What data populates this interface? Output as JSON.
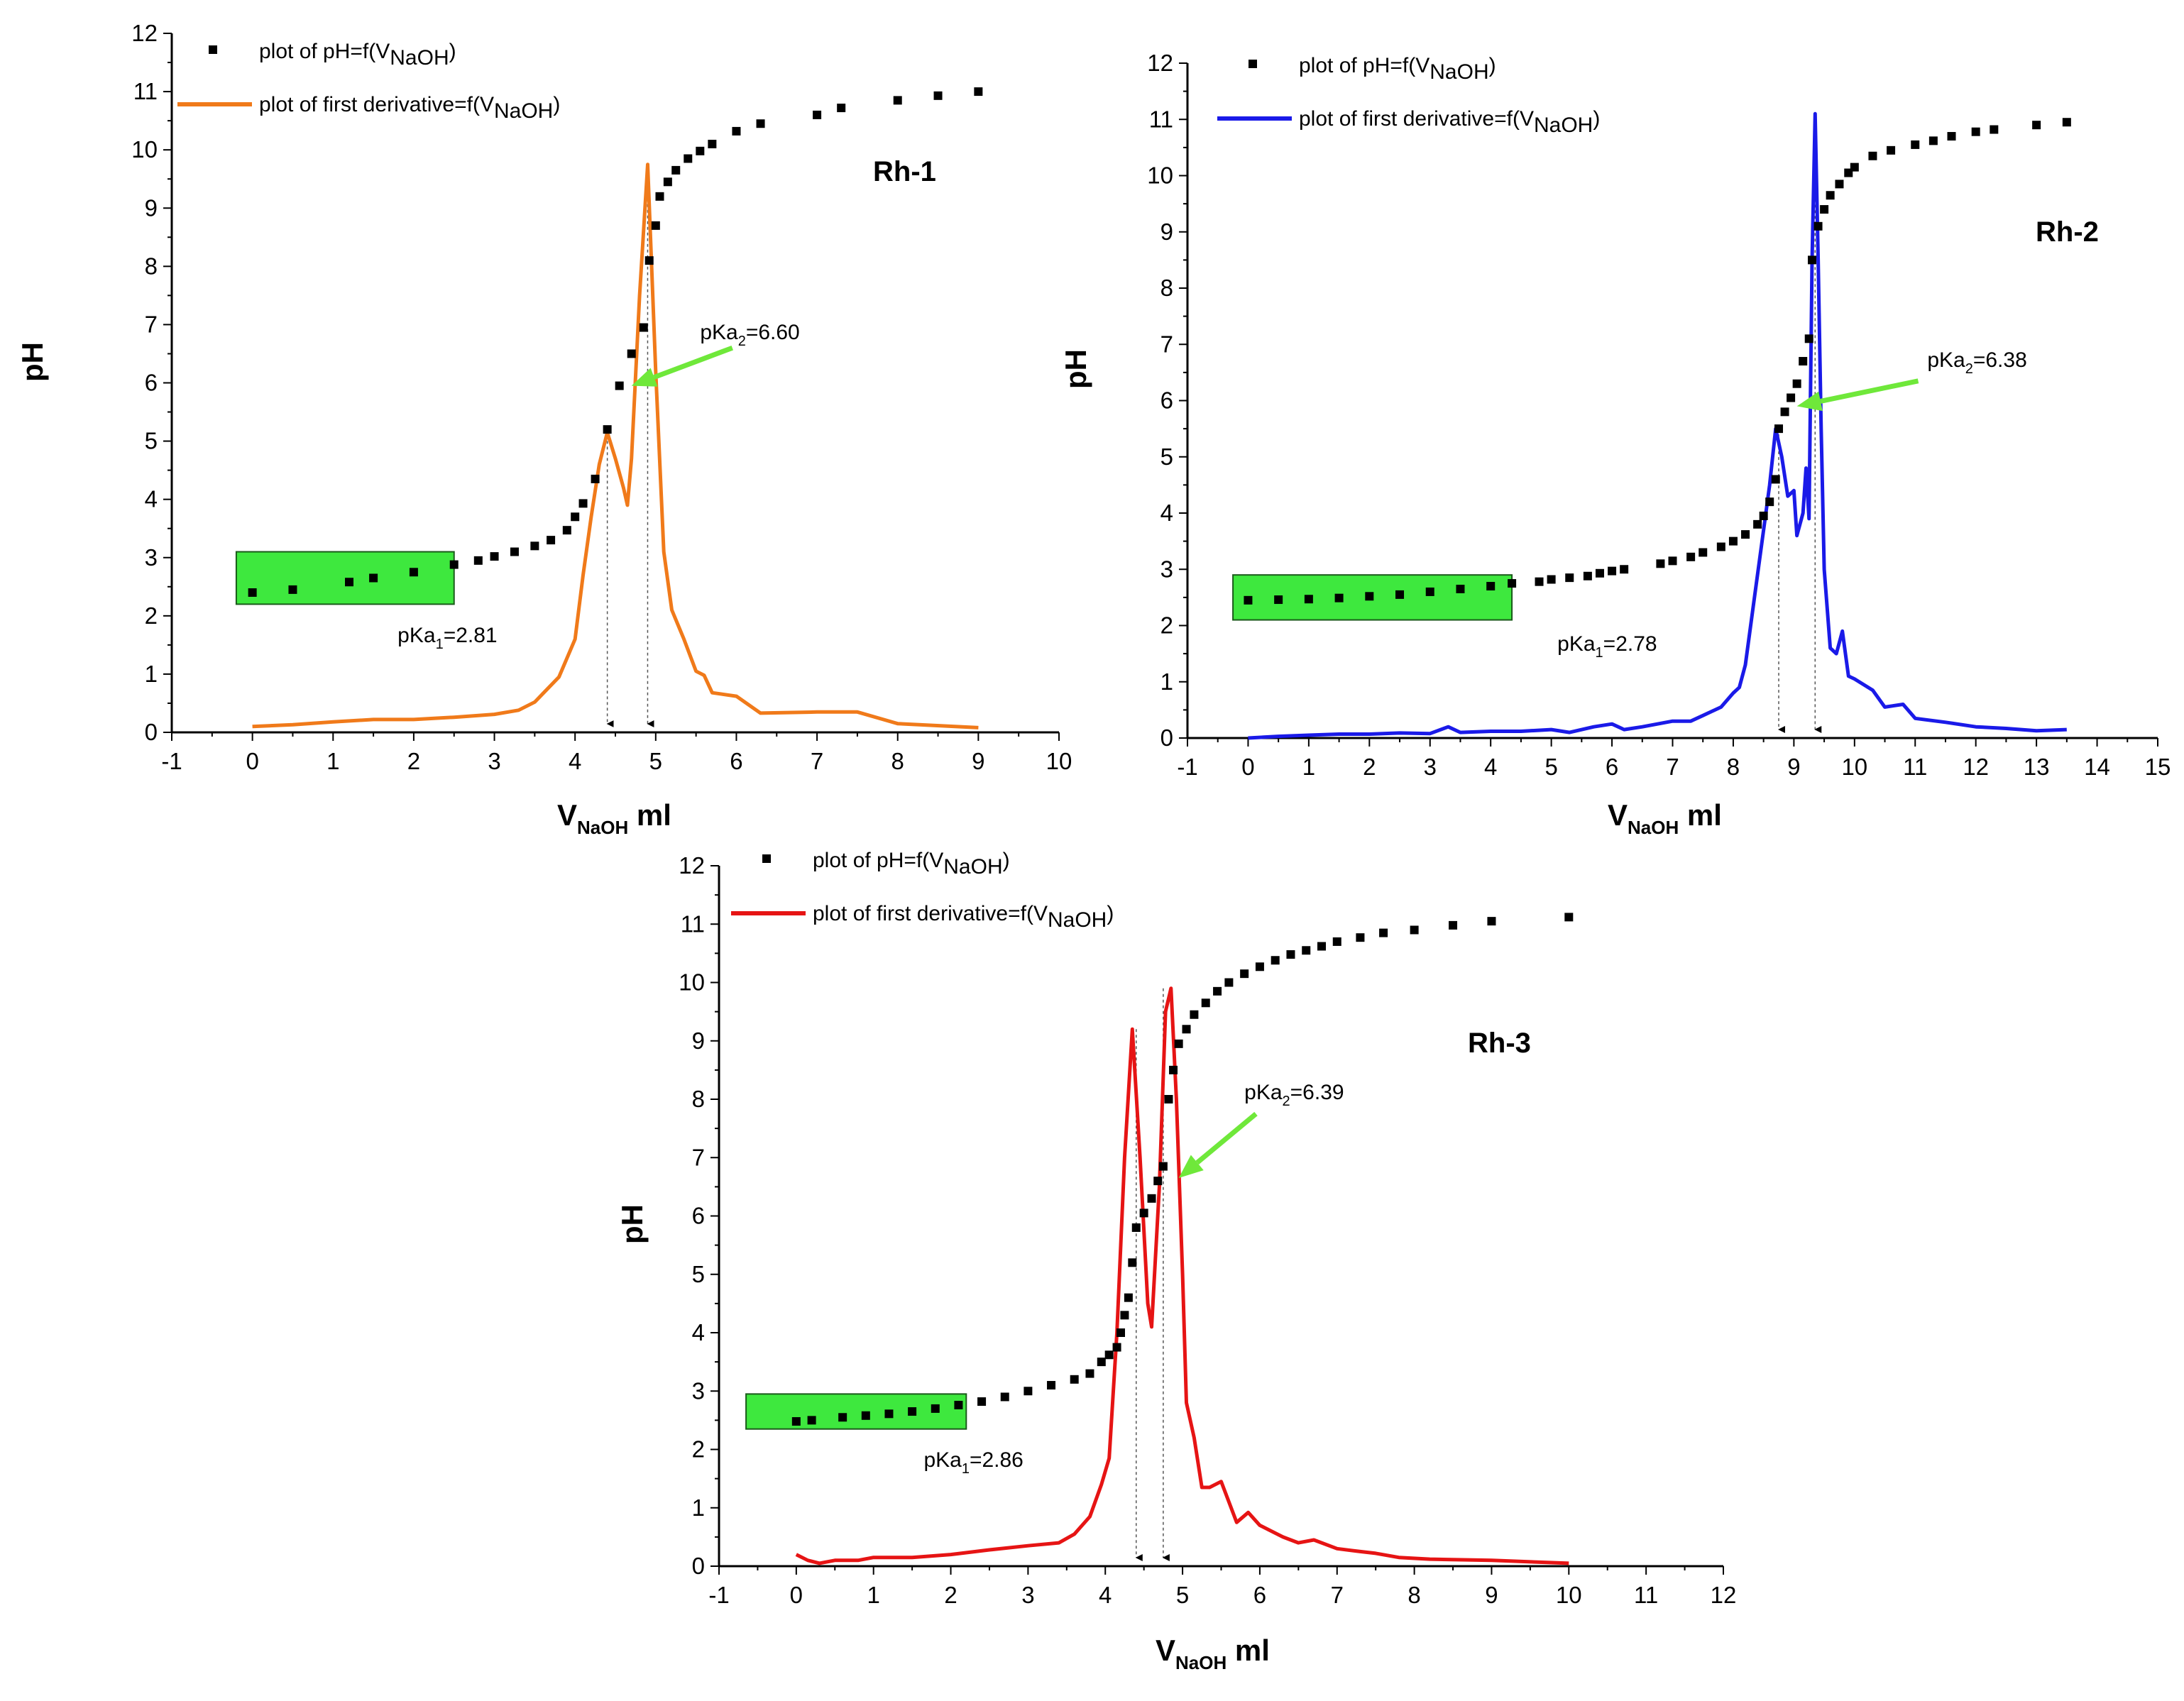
{
  "chart_data": [
    {
      "type": "line",
      "title": "Rh-1",
      "xlabel_main": "V",
      "xlabel_sub": "NaOH",
      "xlabel_unit": " ml",
      "ylabel": "pH",
      "xlim": [
        -1,
        10
      ],
      "ylim": [
        0,
        12
      ],
      "xticks": [
        "-1",
        "0",
        "1",
        "2",
        "3",
        "4",
        "5",
        "6",
        "7",
        "8",
        "9",
        "10"
      ],
      "yticks": [
        "0",
        "1",
        "2",
        "3",
        "4",
        "5",
        "6",
        "7",
        "8",
        "9",
        "10",
        "11",
        "12"
      ],
      "legend": {
        "scatter_prefix": "plot of pH=f(V",
        "scatter_sub": "NaOH",
        "scatter_suffix": ")",
        "line_prefix": "plot of first derivative=f(V",
        "line_sub": "NaOH",
        "line_suffix": ")"
      },
      "line_color": "#F07A1A",
      "highlight_color": "#3EE83E",
      "arrow_color": "#6FE83A",
      "highlight_x": [
        -0.2,
        2.5
      ],
      "highlight_y": [
        2.2,
        3.1
      ],
      "pka1": {
        "prefix": "pKa",
        "sub": "1",
        "value": "=2.81"
      },
      "pka2": {
        "prefix": "pKa",
        "sub": "2",
        "value": "=6.60"
      },
      "pka1_anchor": [
        1.8,
        1.55
      ],
      "pka2_anchor": [
        5.55,
        6.75
      ],
      "green_arrow": {
        "from": [
          5.95,
          6.6
        ],
        "to": [
          4.7,
          5.95
        ]
      },
      "equivalence_points": [
        4.4,
        4.9
      ],
      "equiv_top": [
        5.1,
        9.75
      ],
      "scatter": [
        [
          0,
          2.4
        ],
        [
          0.5,
          2.45
        ],
        [
          1.2,
          2.58
        ],
        [
          1.5,
          2.65
        ],
        [
          2,
          2.75
        ],
        [
          2.5,
          2.88
        ],
        [
          2.8,
          2.95
        ],
        [
          3,
          3.02
        ],
        [
          3.25,
          3.1
        ],
        [
          3.5,
          3.2
        ],
        [
          3.7,
          3.3
        ],
        [
          3.9,
          3.47
        ],
        [
          4,
          3.7
        ],
        [
          4.1,
          3.93
        ],
        [
          4.25,
          4.35
        ],
        [
          4.4,
          5.2
        ],
        [
          4.55,
          5.95
        ],
        [
          4.7,
          6.5
        ],
        [
          4.85,
          6.95
        ],
        [
          4.92,
          8.1
        ],
        [
          5,
          8.7
        ],
        [
          5.05,
          9.2
        ],
        [
          5.15,
          9.45
        ],
        [
          5.25,
          9.65
        ],
        [
          5.4,
          9.85
        ],
        [
          5.55,
          9.98
        ],
        [
          5.7,
          10.1
        ],
        [
          6,
          10.32
        ],
        [
          6.3,
          10.45
        ],
        [
          7,
          10.6
        ],
        [
          7.3,
          10.72
        ],
        [
          8,
          10.85
        ],
        [
          8.5,
          10.93
        ],
        [
          9,
          11
        ]
      ],
      "derivative": [
        [
          0,
          0.1
        ],
        [
          0.5,
          0.13
        ],
        [
          1,
          0.18
        ],
        [
          1.5,
          0.22
        ],
        [
          2,
          0.22
        ],
        [
          2.5,
          0.26
        ],
        [
          3,
          0.31
        ],
        [
          3.3,
          0.38
        ],
        [
          3.5,
          0.52
        ],
        [
          3.8,
          0.95
        ],
        [
          4,
          1.6
        ],
        [
          4.1,
          2.7
        ],
        [
          4.2,
          3.7
        ],
        [
          4.3,
          4.6
        ],
        [
          4.4,
          5.15
        ],
        [
          4.5,
          4.7
        ],
        [
          4.6,
          4.2
        ],
        [
          4.65,
          3.9
        ],
        [
          4.7,
          4.7
        ],
        [
          4.8,
          7.5
        ],
        [
          4.9,
          9.75
        ],
        [
          5,
          6.2
        ],
        [
          5.1,
          3.1
        ],
        [
          5.2,
          2.1
        ],
        [
          5.35,
          1.6
        ],
        [
          5.5,
          1.05
        ],
        [
          5.6,
          0.98
        ],
        [
          5.7,
          0.68
        ],
        [
          6,
          0.62
        ],
        [
          6.3,
          0.33
        ],
        [
          7,
          0.35
        ],
        [
          7.5,
          0.35
        ],
        [
          8,
          0.15
        ],
        [
          9,
          0.08
        ]
      ]
    },
    {
      "type": "line",
      "title": "Rh-2",
      "xlabel_main": "V",
      "xlabel_sub": "NaOH",
      "xlabel_unit": " ml",
      "ylabel": "pH",
      "xlim": [
        -1,
        15
      ],
      "ylim": [
        0,
        12
      ],
      "xticks": [
        "-1",
        "0",
        "1",
        "2",
        "3",
        "4",
        "5",
        "6",
        "7",
        "8",
        "9",
        "10",
        "11",
        "12",
        "13",
        "14",
        "15"
      ],
      "yticks": [
        "0",
        "1",
        "2",
        "3",
        "4",
        "5",
        "6",
        "7",
        "8",
        "9",
        "10",
        "11",
        "12"
      ],
      "legend": {
        "scatter_prefix": "plot of pH=f(V",
        "scatter_sub": "NaOH",
        "scatter_suffix": ")",
        "line_prefix": "plot of first derivative=f(V",
        "line_sub": "NaOH",
        "line_suffix": ")"
      },
      "line_color": "#1A1AE8",
      "highlight_color": "#3EE83E",
      "arrow_color": "#6FE83A",
      "highlight_x": [
        -0.25,
        4.35
      ],
      "highlight_y": [
        2.1,
        2.9
      ],
      "pka1": {
        "prefix": "pKa",
        "sub": "1",
        "value": "=2.78"
      },
      "pka2": {
        "prefix": "pKa",
        "sub": "2",
        "value": "=6.38"
      },
      "pka1_anchor": [
        5.1,
        1.55
      ],
      "pka2_anchor": [
        11.2,
        6.6
      ],
      "green_arrow": {
        "from": [
          11.05,
          6.35
        ],
        "to": [
          9.05,
          5.9
        ]
      },
      "equivalence_points": [
        8.75,
        9.35
      ],
      "equiv_top": [
        5.5,
        11.1
      ],
      "scatter": [
        [
          0,
          2.45
        ],
        [
          0.5,
          2.46
        ],
        [
          1,
          2.47
        ],
        [
          1.5,
          2.49
        ],
        [
          2,
          2.52
        ],
        [
          2.5,
          2.55
        ],
        [
          3,
          2.6
        ],
        [
          3.5,
          2.65
        ],
        [
          4,
          2.7
        ],
        [
          4.35,
          2.75
        ],
        [
          4.8,
          2.78
        ],
        [
          5,
          2.82
        ],
        [
          5.3,
          2.85
        ],
        [
          5.6,
          2.88
        ],
        [
          5.8,
          2.93
        ],
        [
          6,
          2.97
        ],
        [
          6.2,
          3.0
        ],
        [
          6.8,
          3.1
        ],
        [
          7,
          3.15
        ],
        [
          7.3,
          3.22
        ],
        [
          7.5,
          3.3
        ],
        [
          7.8,
          3.4
        ],
        [
          8,
          3.5
        ],
        [
          8.2,
          3.62
        ],
        [
          8.4,
          3.8
        ],
        [
          8.5,
          3.95
        ],
        [
          8.6,
          4.2
        ],
        [
          8.7,
          4.6
        ],
        [
          8.75,
          5.5
        ],
        [
          8.85,
          5.8
        ],
        [
          8.95,
          6.05
        ],
        [
          9.05,
          6.3
        ],
        [
          9.15,
          6.7
        ],
        [
          9.25,
          7.1
        ],
        [
          9.3,
          8.5
        ],
        [
          9.4,
          9.1
        ],
        [
          9.5,
          9.4
        ],
        [
          9.6,
          9.65
        ],
        [
          9.75,
          9.85
        ],
        [
          9.9,
          10.05
        ],
        [
          10,
          10.15
        ],
        [
          10.3,
          10.35
        ],
        [
          10.6,
          10.45
        ],
        [
          11,
          10.55
        ],
        [
          11.3,
          10.62
        ],
        [
          11.6,
          10.7
        ],
        [
          12,
          10.78
        ],
        [
          12.3,
          10.82
        ],
        [
          13,
          10.9
        ],
        [
          13.5,
          10.95
        ]
      ],
      "derivative": [
        [
          0,
          0
        ],
        [
          0.5,
          0.03
        ],
        [
          1,
          0.05
        ],
        [
          1.5,
          0.07
        ],
        [
          2,
          0.07
        ],
        [
          2.5,
          0.09
        ],
        [
          3,
          0.08
        ],
        [
          3.3,
          0.2
        ],
        [
          3.5,
          0.1
        ],
        [
          4,
          0.12
        ],
        [
          4.5,
          0.12
        ],
        [
          5,
          0.15
        ],
        [
          5.3,
          0.1
        ],
        [
          5.7,
          0.2
        ],
        [
          6,
          0.25
        ],
        [
          6.2,
          0.15
        ],
        [
          6.5,
          0.2
        ],
        [
          7,
          0.3
        ],
        [
          7.3,
          0.3
        ],
        [
          7.5,
          0.4
        ],
        [
          7.8,
          0.55
        ],
        [
          8,
          0.8
        ],
        [
          8.1,
          0.9
        ],
        [
          8.2,
          1.3
        ],
        [
          8.35,
          2.5
        ],
        [
          8.5,
          3.7
        ],
        [
          8.6,
          4.5
        ],
        [
          8.7,
          5.5
        ],
        [
          8.8,
          5.0
        ],
        [
          8.9,
          4.3
        ],
        [
          9,
          4.4
        ],
        [
          9.05,
          3.6
        ],
        [
          9.15,
          4.0
        ],
        [
          9.2,
          4.8
        ],
        [
          9.25,
          3.9
        ],
        [
          9.3,
          8.5
        ],
        [
          9.35,
          11.1
        ],
        [
          9.4,
          8.5
        ],
        [
          9.45,
          5.5
        ],
        [
          9.5,
          3.0
        ],
        [
          9.6,
          1.6
        ],
        [
          9.7,
          1.5
        ],
        [
          9.8,
          1.9
        ],
        [
          9.9,
          1.1
        ],
        [
          10,
          1.05
        ],
        [
          10.3,
          0.85
        ],
        [
          10.5,
          0.55
        ],
        [
          10.8,
          0.6
        ],
        [
          11,
          0.35
        ],
        [
          11.5,
          0.28
        ],
        [
          12,
          0.2
        ],
        [
          12.5,
          0.17
        ],
        [
          13,
          0.13
        ],
        [
          13.5,
          0.15
        ]
      ]
    },
    {
      "type": "line",
      "title": "Rh-3",
      "xlabel_main": "V",
      "xlabel_sub": "NaOH",
      "xlabel_unit": " ml",
      "ylabel": "pH",
      "xlim": [
        -1,
        12
      ],
      "ylim": [
        0,
        12
      ],
      "xticks": [
        "-1",
        "0",
        "1",
        "2",
        "3",
        "4",
        "5",
        "6",
        "7",
        "8",
        "9",
        "10",
        "11",
        "12"
      ],
      "yticks": [
        "0",
        "1",
        "2",
        "3",
        "4",
        "5",
        "6",
        "7",
        "8",
        "9",
        "10",
        "11",
        "12"
      ],
      "legend": {
        "scatter_prefix": "plot of pH=f(V",
        "scatter_sub": "NaOH",
        "scatter_suffix": ")",
        "line_prefix": "plot of first derivative=f(V",
        "line_sub": "NaOH",
        "line_suffix": ")"
      },
      "line_color": "#E61414",
      "highlight_color": "#3EE83E",
      "arrow_color": "#6FE83A",
      "highlight_x": [
        -0.65,
        2.2
      ],
      "highlight_y": [
        2.35,
        2.95
      ],
      "pka1": {
        "prefix": "pKa",
        "sub": "1",
        "value": "=2.86"
      },
      "pka2": {
        "prefix": "pKa",
        "sub": "2",
        "value": "=6.39"
      },
      "pka1_anchor": [
        1.65,
        1.7
      ],
      "pka2_anchor": [
        5.8,
        8.0
      ],
      "green_arrow": {
        "from": [
          5.95,
          7.75
        ],
        "to": [
          4.95,
          6.65
        ]
      },
      "equivalence_points": [
        4.4,
        4.75
      ],
      "equiv_top": [
        9.2,
        9.9
      ],
      "scatter": [
        [
          0,
          2.48
        ],
        [
          0.2,
          2.5
        ],
        [
          0.6,
          2.55
        ],
        [
          0.9,
          2.58
        ],
        [
          1.2,
          2.61
        ],
        [
          1.5,
          2.65
        ],
        [
          1.8,
          2.7
        ],
        [
          2.1,
          2.76
        ],
        [
          2.4,
          2.82
        ],
        [
          2.7,
          2.9
        ],
        [
          3,
          3.0
        ],
        [
          3.3,
          3.1
        ],
        [
          3.6,
          3.2
        ],
        [
          3.8,
          3.3
        ],
        [
          3.95,
          3.5
        ],
        [
          4.05,
          3.62
        ],
        [
          4.15,
          3.75
        ],
        [
          4.2,
          4.0
        ],
        [
          4.25,
          4.3
        ],
        [
          4.3,
          4.6
        ],
        [
          4.35,
          5.2
        ],
        [
          4.4,
          5.8
        ],
        [
          4.5,
          6.05
        ],
        [
          4.6,
          6.3
        ],
        [
          4.68,
          6.6
        ],
        [
          4.75,
          6.85
        ],
        [
          4.82,
          8.0
        ],
        [
          4.88,
          8.5
        ],
        [
          4.95,
          8.95
        ],
        [
          5.05,
          9.2
        ],
        [
          5.15,
          9.45
        ],
        [
          5.3,
          9.65
        ],
        [
          5.45,
          9.85
        ],
        [
          5.6,
          10.0
        ],
        [
          5.8,
          10.15
        ],
        [
          6,
          10.27
        ],
        [
          6.2,
          10.38
        ],
        [
          6.4,
          10.48
        ],
        [
          6.6,
          10.55
        ],
        [
          6.8,
          10.62
        ],
        [
          7,
          10.7
        ],
        [
          7.3,
          10.77
        ],
        [
          7.6,
          10.85
        ],
        [
          8,
          10.9
        ],
        [
          8.5,
          10.98
        ],
        [
          9,
          11.05
        ],
        [
          10,
          11.12
        ]
      ],
      "derivative": [
        [
          0,
          0.2
        ],
        [
          0.15,
          0.1
        ],
        [
          0.3,
          0.05
        ],
        [
          0.5,
          0.1
        ],
        [
          0.8,
          0.1
        ],
        [
          1,
          0.15
        ],
        [
          1.5,
          0.15
        ],
        [
          2,
          0.2
        ],
        [
          2.5,
          0.28
        ],
        [
          3,
          0.35
        ],
        [
          3.4,
          0.4
        ],
        [
          3.6,
          0.55
        ],
        [
          3.8,
          0.85
        ],
        [
          3.95,
          1.4
        ],
        [
          4.05,
          1.85
        ],
        [
          4.15,
          4.0
        ],
        [
          4.25,
          7.0
        ],
        [
          4.35,
          9.2
        ],
        [
          4.45,
          7.0
        ],
        [
          4.55,
          4.5
        ],
        [
          4.6,
          4.1
        ],
        [
          4.7,
          6.5
        ],
        [
          4.78,
          9.5
        ],
        [
          4.85,
          9.9
        ],
        [
          4.92,
          8.0
        ],
        [
          5,
          5.0
        ],
        [
          5.05,
          2.8
        ],
        [
          5.15,
          2.2
        ],
        [
          5.25,
          1.35
        ],
        [
          5.35,
          1.35
        ],
        [
          5.5,
          1.45
        ],
        [
          5.6,
          1.1
        ],
        [
          5.7,
          0.75
        ],
        [
          5.85,
          0.92
        ],
        [
          6,
          0.7
        ],
        [
          6.3,
          0.5
        ],
        [
          6.5,
          0.4
        ],
        [
          6.7,
          0.45
        ],
        [
          7,
          0.3
        ],
        [
          7.3,
          0.25
        ],
        [
          7.5,
          0.22
        ],
        [
          7.8,
          0.15
        ],
        [
          8.2,
          0.12
        ],
        [
          9,
          0.1
        ],
        [
          10,
          0.05
        ]
      ]
    }
  ]
}
